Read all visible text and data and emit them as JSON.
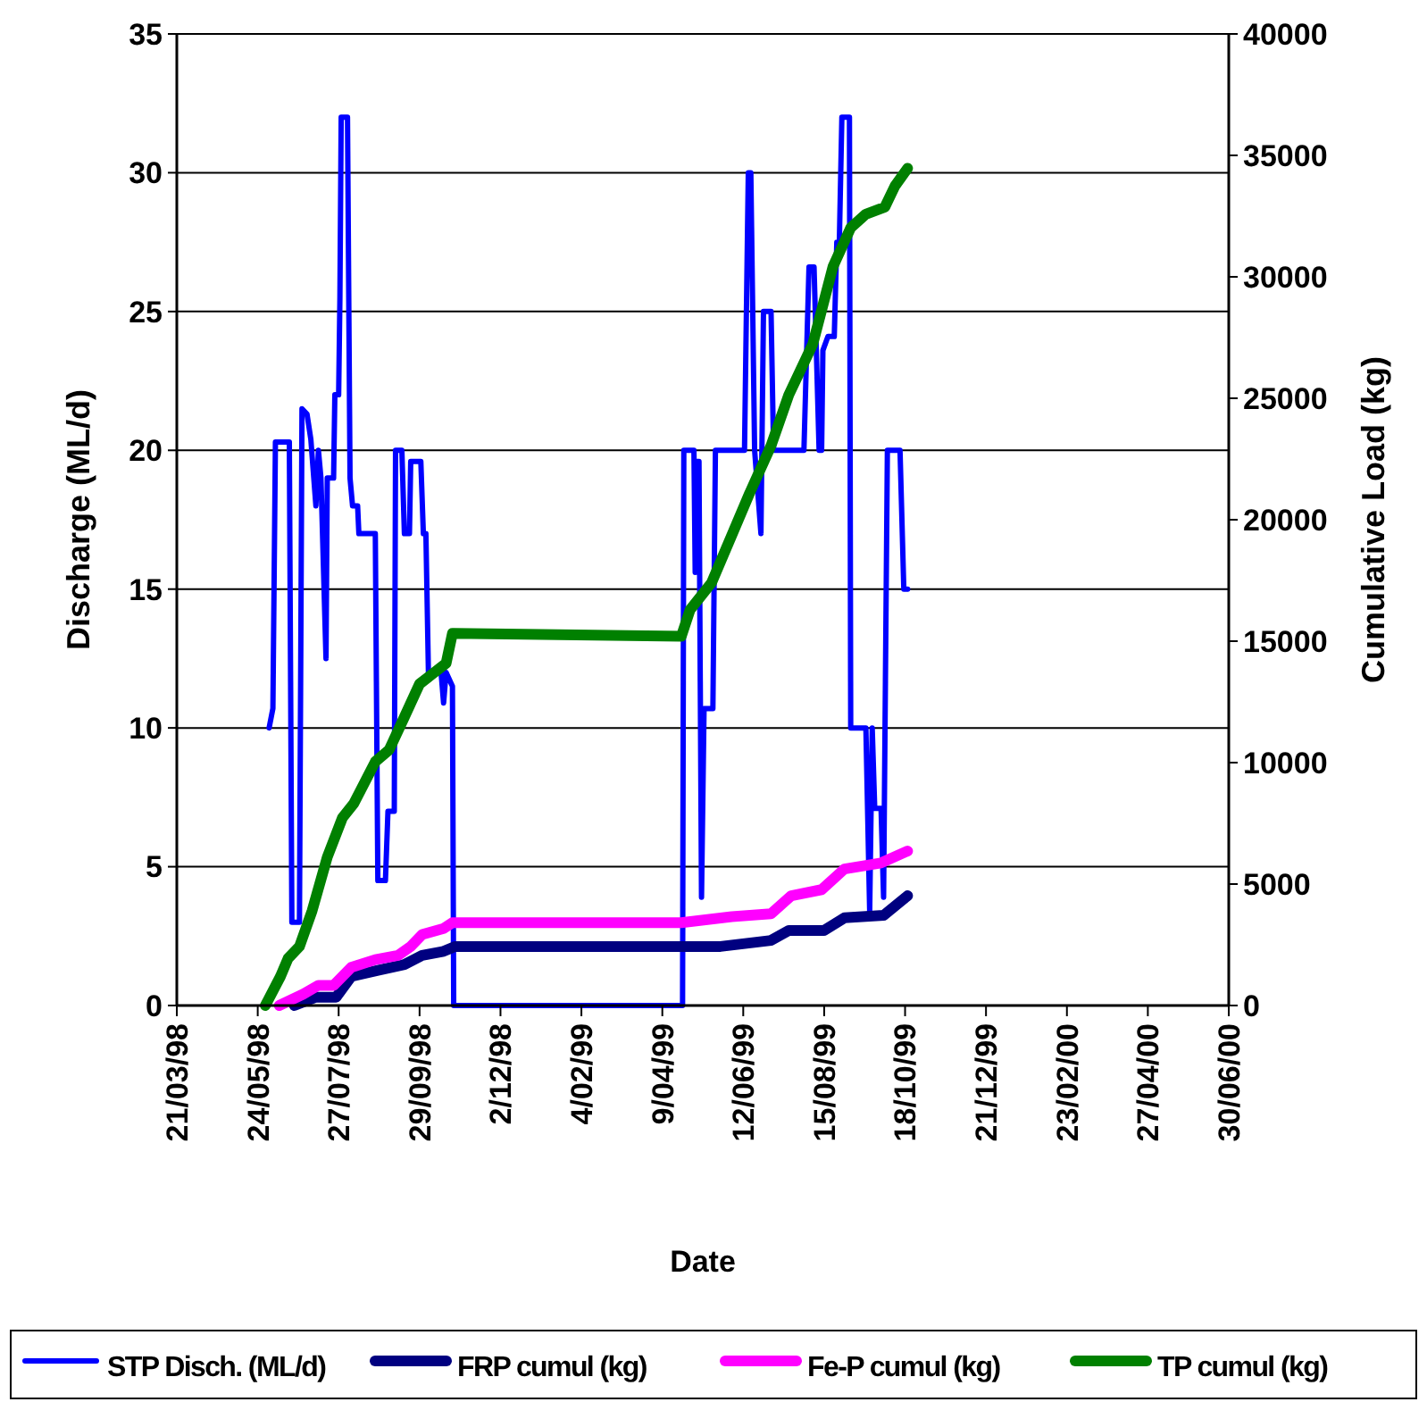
{
  "chart_data": {
    "type": "line",
    "xlabel": "Date",
    "ylabel": "Discharge (ML/d)",
    "y2label": "Cumulative Load (kg)",
    "legend": "bottom",
    "grid": "y",
    "marker": "none",
    "line_style": "solid",
    "xlim": [
      "1998-03-21",
      "2000-06-30"
    ],
    "xticks": [
      {
        "value": "1998-03-21",
        "label": "21/03/98"
      },
      {
        "value": "1998-05-24",
        "label": "24/05/98"
      },
      {
        "value": "1998-07-27",
        "label": "27/07/98"
      },
      {
        "value": "1998-09-29",
        "label": "29/09/98"
      },
      {
        "value": "1998-12-02",
        "label": "2/12/98"
      },
      {
        "value": "1999-02-04",
        "label": "4/02/99"
      },
      {
        "value": "1999-04-09",
        "label": "9/04/99"
      },
      {
        "value": "1999-06-12",
        "label": "12/06/99"
      },
      {
        "value": "1999-08-15",
        "label": "15/08/99"
      },
      {
        "value": "1999-10-18",
        "label": "18/10/99"
      },
      {
        "value": "1999-12-21",
        "label": "21/12/99"
      },
      {
        "value": "2000-02-23",
        "label": "23/02/00"
      },
      {
        "value": "2000-04-27",
        "label": "27/04/00"
      },
      {
        "value": "2000-06-30",
        "label": "30/06/00"
      }
    ],
    "ylim": [
      0,
      35
    ],
    "yticks": [
      0,
      5,
      10,
      15,
      20,
      25,
      30,
      35
    ],
    "y2lim": [
      0,
      40000
    ],
    "y2ticks": [
      0,
      5000,
      10000,
      15000,
      20000,
      25000,
      30000,
      35000,
      40000
    ],
    "series": [
      {
        "name": "STP Disch. (ML/d)",
        "color": "#0000ff",
        "x": [
          "1998-06-02",
          "1998-06-05",
          "1998-06-07",
          "1998-06-18",
          "1998-06-20",
          "1998-06-26",
          "1998-06-28",
          "1998-07-02",
          "1998-07-05",
          "1998-07-09",
          "1998-07-11",
          "1998-07-13",
          "1998-07-17",
          "1998-07-18",
          "1998-07-23",
          "1998-07-24",
          "1998-07-27",
          "1998-07-28",
          "1998-07-29",
          "1998-08-03",
          "1998-08-05",
          "1998-08-07",
          "1998-08-11",
          "1998-08-12",
          "1998-08-25",
          "1998-08-27",
          "1998-09-02",
          "1998-09-04",
          "1998-09-09",
          "1998-09-10",
          "1998-09-15",
          "1998-09-17",
          "1998-09-21",
          "1998-09-22",
          "1998-09-30",
          "1998-10-02",
          "1998-10-04",
          "1998-10-06",
          "1998-10-16",
          "1998-10-18",
          "1998-10-20",
          "1998-10-25",
          "1998-10-26",
          "1999-04-25",
          "1999-04-26",
          "1999-05-04",
          "1999-05-05",
          "1999-05-06",
          "1999-05-08",
          "1999-05-10",
          "1999-05-12",
          "1999-05-19",
          "1999-05-21",
          "1999-06-13",
          "1999-06-16",
          "1999-06-18",
          "1999-06-21",
          "1999-06-26",
          "1999-06-28",
          "1999-07-04",
          "1999-07-06",
          "1999-07-30",
          "1999-08-03",
          "1999-08-07",
          "1999-08-11",
          "1999-08-13",
          "1999-08-14",
          "1999-08-18",
          "1999-08-23",
          "1999-08-25",
          "1999-08-27",
          "1999-08-29",
          "1999-09-04",
          "1999-09-05",
          "1999-09-17",
          "1999-09-20",
          "1999-09-22",
          "1999-09-24",
          "1999-09-29",
          "1999-10-01",
          "1999-10-04",
          "1999-10-14",
          "1999-10-17",
          "1999-10-20"
        ],
        "values": [
          10,
          10.7,
          20.3,
          20.3,
          3,
          3,
          21.5,
          21.3,
          20.4,
          18,
          20,
          19,
          12.5,
          19,
          19,
          22,
          22,
          25.5,
          32,
          32,
          19,
          18,
          18,
          17,
          17,
          4.5,
          4.5,
          7,
          7,
          20,
          20,
          17,
          17,
          19.6,
          19.6,
          17,
          17,
          12,
          12,
          10.9,
          12,
          11.5,
          0,
          0,
          20,
          20,
          15.6,
          19.6,
          19.6,
          3.9,
          10.7,
          10.7,
          20,
          20,
          30,
          30,
          20,
          17,
          25,
          25,
          20,
          20,
          26.6,
          26.6,
          20,
          20,
          23.6,
          24.1,
          24.1,
          27.5,
          27.5,
          32,
          32,
          10,
          10,
          3.4,
          10,
          7.1,
          7.1,
          3.9,
          20,
          20,
          15,
          15
        ]
      },
      {
        "name": "FRP cumul (kg)",
        "color": "#000080",
        "axis": "y2",
        "x": [
          "1998-06-22",
          "1998-07-09",
          "1998-07-25",
          "1998-08-06",
          "1998-08-27",
          "1998-09-17",
          "1998-10-01",
          "1998-10-18",
          "1998-10-27",
          "1999-05-25",
          "1999-07-04",
          "1999-07-18",
          "1999-08-15",
          "1999-08-31",
          "1999-10-01",
          "1999-10-20"
        ],
        "values": [
          0,
          340,
          340,
          1200,
          1450,
          1690,
          2060,
          2230,
          2430,
          2430,
          2680,
          3090,
          3090,
          3610,
          3710,
          4520
        ]
      },
      {
        "name": "Fe-P cumul (kg)",
        "color": "#ff00ff",
        "axis": "y2",
        "x": [
          "1998-06-10",
          "1998-06-29",
          "1998-07-11",
          "1998-07-23",
          "1998-08-06",
          "1998-08-25",
          "1998-09-12",
          "1998-09-22",
          "1998-10-01",
          "1998-10-18",
          "1998-10-25",
          "1999-04-24",
          "1999-06-03",
          "1999-07-04",
          "1999-07-20",
          "1999-08-13",
          "1999-08-31",
          "1999-09-29",
          "1999-10-20"
        ],
        "values": [
          0,
          470,
          830,
          830,
          1570,
          1890,
          2060,
          2430,
          2920,
          3170,
          3410,
          3410,
          3660,
          3780,
          4520,
          4770,
          5620,
          5870,
          6360
        ]
      },
      {
        "name": "TP cumul (kg)",
        "color": "#008000",
        "axis": "y2",
        "x": [
          "1998-05-30",
          "1998-06-11",
          "1998-06-17",
          "1998-06-26",
          "1998-07-06",
          "1998-07-18",
          "1998-07-30",
          "1998-08-08",
          "1998-08-25",
          "1998-09-05",
          "1998-09-17",
          "1998-09-29",
          "1998-10-08",
          "1998-10-20",
          "1998-10-25",
          "1999-04-24",
          "1999-05-01",
          "1999-05-18",
          "1999-06-03",
          "1999-06-17",
          "1999-07-04",
          "1999-07-18",
          "1999-08-06",
          "1999-08-22",
          "1999-09-05",
          "1999-09-17",
          "1999-10-02",
          "1999-10-10",
          "1999-10-20"
        ],
        "values": [
          0,
          1200,
          1940,
          2430,
          3900,
          6110,
          7730,
          8320,
          10040,
          10530,
          11880,
          13240,
          13600,
          14090,
          15320,
          15200,
          16300,
          17410,
          19370,
          21090,
          23050,
          25140,
          27230,
          30420,
          32020,
          32580,
          32870,
          33740,
          34470
        ]
      }
    ]
  }
}
